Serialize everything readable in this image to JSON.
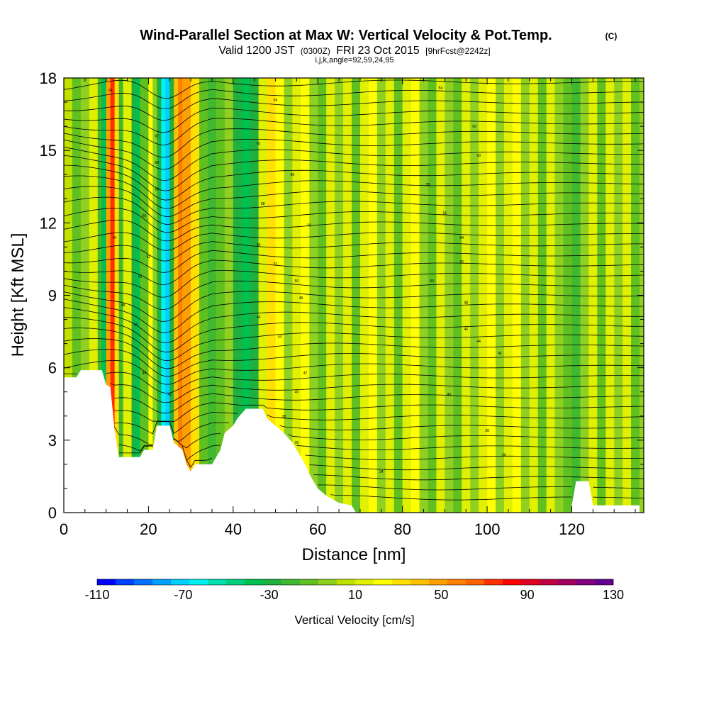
{
  "title": "Wind-Parallel Section at Max W: Vertical Velocity & Pot.Temp.",
  "title_mark": "(C)",
  "subtitle": {
    "valid": "Valid 1200 JST",
    "utc": "(0300Z)",
    "date": "FRI 23 Oct 2015",
    "fcst": "[9hrFcst@2242z]"
  },
  "subtitle2": "i,j,k,angle=92,59,24,95",
  "chart_data": {
    "type": "heatmap",
    "xlabel": "Distance [nm]",
    "ylabel": "Height [Kft MSL]",
    "xlim": [
      0,
      137
    ],
    "ylim": [
      0,
      18
    ],
    "x_ticks": [
      "0",
      "20",
      "40",
      "60",
      "80",
      "100",
      "120"
    ],
    "y_ticks": [
      "0",
      "3",
      "6",
      "9",
      "12",
      "15",
      "18"
    ],
    "colorbar": {
      "label": "Vertical Velocity [cm/s]",
      "range": [
        -110,
        130
      ],
      "tick_labels": [
        "-110",
        "-70",
        "-30",
        "10",
        "50",
        "90",
        "130"
      ],
      "colors": [
        "#0000ff",
        "#0040ff",
        "#0070ff",
        "#00a0ff",
        "#00d0ff",
        "#00f0f0",
        "#00e0b0",
        "#00d080",
        "#00c050",
        "#20b040",
        "#40b830",
        "#60c020",
        "#90d020",
        "#c0e000",
        "#e0f000",
        "#ffff00",
        "#ffe000",
        "#ffc000",
        "#ffa000",
        "#ff8000",
        "#ff6000",
        "#ff3000",
        "#ff0000",
        "#e00020",
        "#c00040",
        "#a00060",
        "#800080",
        "#600090"
      ]
    },
    "band_velocity": [
      {
        "x": 0,
        "w": 8
      },
      {
        "x": 2,
        "w": -10
      },
      {
        "x": 4,
        "w": 0
      },
      {
        "x": 6,
        "w": 10
      },
      {
        "x": 8,
        "w": -20
      },
      {
        "x": 9,
        "w": -40
      },
      {
        "x": 10,
        "w": 50
      },
      {
        "x": 11,
        "w": 70
      },
      {
        "x": 12,
        "w": 30
      },
      {
        "x": 13,
        "w": -20
      },
      {
        "x": 14,
        "w": 10
      },
      {
        "x": 16,
        "w": -30
      },
      {
        "x": 17,
        "w": -40
      },
      {
        "x": 18,
        "w": -10
      },
      {
        "x": 20,
        "w": 20
      },
      {
        "x": 21,
        "w": 0
      },
      {
        "x": 22,
        "w": -30
      },
      {
        "x": 23,
        "w": -60
      },
      {
        "x": 24,
        "w": -70
      },
      {
        "x": 25,
        "w": -30
      },
      {
        "x": 26,
        "w": 40
      },
      {
        "x": 27,
        "w": 60
      },
      {
        "x": 28,
        "w": 50
      },
      {
        "x": 30,
        "w": 30
      },
      {
        "x": 32,
        "w": -10
      },
      {
        "x": 34,
        "w": -20
      },
      {
        "x": 36,
        "w": -10
      },
      {
        "x": 38,
        "w": 0
      },
      {
        "x": 40,
        "w": -30
      },
      {
        "x": 42,
        "w": -40
      },
      {
        "x": 44,
        "w": -30
      },
      {
        "x": 46,
        "w": 10
      },
      {
        "x": 48,
        "w": 30
      },
      {
        "x": 50,
        "w": 20
      },
      {
        "x": 52,
        "w": 0
      },
      {
        "x": 54,
        "w": 10
      },
      {
        "x": 56,
        "w": 20
      },
      {
        "x": 58,
        "w": 0
      },
      {
        "x": 60,
        "w": -10
      },
      {
        "x": 62,
        "w": 10
      },
      {
        "x": 64,
        "w": 0
      },
      {
        "x": 66,
        "w": 10
      },
      {
        "x": 68,
        "w": -10
      },
      {
        "x": 70,
        "w": 10
      },
      {
        "x": 72,
        "w": 20
      },
      {
        "x": 74,
        "w": 0
      },
      {
        "x": 76,
        "w": 10
      },
      {
        "x": 78,
        "w": -10
      },
      {
        "x": 80,
        "w": 10
      },
      {
        "x": 82,
        "w": 20
      },
      {
        "x": 84,
        "w": 0
      },
      {
        "x": 86,
        "w": -10
      },
      {
        "x": 88,
        "w": 10
      },
      {
        "x": 90,
        "w": 0
      },
      {
        "x": 92,
        "w": -10
      },
      {
        "x": 94,
        "w": 10
      },
      {
        "x": 96,
        "w": 0
      },
      {
        "x": 98,
        "w": 10
      },
      {
        "x": 100,
        "w": 20
      },
      {
        "x": 102,
        "w": 0
      },
      {
        "x": 104,
        "w": 10
      },
      {
        "x": 106,
        "w": 20
      },
      {
        "x": 108,
        "w": 0
      },
      {
        "x": 110,
        "w": 10
      },
      {
        "x": 112,
        "w": -10
      },
      {
        "x": 114,
        "w": 10
      },
      {
        "x": 116,
        "w": 0
      },
      {
        "x": 118,
        "w": -10
      },
      {
        "x": 120,
        "w": -20
      },
      {
        "x": 122,
        "w": 0
      },
      {
        "x": 124,
        "w": 10
      },
      {
        "x": 126,
        "w": -10
      },
      {
        "x": 128,
        "w": 10
      },
      {
        "x": 130,
        "w": 0
      },
      {
        "x": 132,
        "w": 10
      },
      {
        "x": 134,
        "w": -10
      },
      {
        "x": 136,
        "w": 0
      }
    ],
    "terrain_kft": [
      [
        0,
        5.3
      ],
      [
        0,
        5.6
      ],
      [
        3,
        5.6
      ],
      [
        4,
        5.9
      ],
      [
        9,
        5.9
      ],
      [
        10,
        5.3
      ],
      [
        11,
        5.2
      ],
      [
        12,
        3.4
      ],
      [
        13,
        2.3
      ],
      [
        18,
        2.3
      ],
      [
        19,
        2.6
      ],
      [
        21,
        2.6
      ],
      [
        22,
        3.6
      ],
      [
        25,
        3.6
      ],
      [
        26,
        2.9
      ],
      [
        28,
        2.6
      ],
      [
        29,
        2.0
      ],
      [
        30,
        1.7
      ],
      [
        31,
        2.0
      ],
      [
        35,
        2.0
      ],
      [
        37,
        2.6
      ],
      [
        38,
        3.3
      ],
      [
        40,
        3.6
      ],
      [
        41,
        3.9
      ],
      [
        43,
        4.3
      ],
      [
        47,
        4.3
      ],
      [
        48,
        3.9
      ],
      [
        50,
        3.6
      ],
      [
        52,
        3.3
      ],
      [
        54,
        2.9
      ],
      [
        56,
        2.3
      ],
      [
        57,
        2.0
      ],
      [
        58,
        1.6
      ],
      [
        59,
        1.3
      ],
      [
        60,
        1.0
      ],
      [
        62,
        0.7
      ],
      [
        65,
        0.4
      ],
      [
        68,
        0.3
      ],
      [
        69,
        0
      ],
      [
        120,
        0
      ],
      [
        120,
        0.3
      ],
      [
        121,
        1.3
      ],
      [
        124,
        1.3
      ],
      [
        125,
        0.3
      ],
      [
        136,
        0.3
      ],
      [
        136,
        0
      ]
    ],
    "isentrope_labels": [
      {
        "x": 11,
        "y": 17.5,
        "t": "64"
      },
      {
        "x": 22,
        "y": 15.6,
        "t": "62"
      },
      {
        "x": 22,
        "y": 14.5,
        "t": "60"
      },
      {
        "x": 22,
        "y": 13.4,
        "t": "58"
      },
      {
        "x": 19,
        "y": 12.3,
        "t": "56"
      },
      {
        "x": 12,
        "y": 11.4,
        "t": "54"
      },
      {
        "x": 20,
        "y": 10.6,
        "t": "52"
      },
      {
        "x": 18,
        "y": 9.8,
        "t": "50"
      },
      {
        "x": 14,
        "y": 8.6,
        "t": "48"
      },
      {
        "x": 17,
        "y": 7.8,
        "t": "46"
      },
      {
        "x": 19,
        "y": 5.8,
        "t": "44"
      },
      {
        "x": 25,
        "y": 4.9,
        "t": "42"
      },
      {
        "x": 50,
        "y": 17.1,
        "t": "64"
      },
      {
        "x": 46,
        "y": 15.3,
        "t": "62"
      },
      {
        "x": 54,
        "y": 14.0,
        "t": "60"
      },
      {
        "x": 47,
        "y": 12.8,
        "t": "58"
      },
      {
        "x": 58,
        "y": 11.9,
        "t": "56"
      },
      {
        "x": 46,
        "y": 11.1,
        "t": "54"
      },
      {
        "x": 50,
        "y": 10.3,
        "t": "52"
      },
      {
        "x": 55,
        "y": 9.6,
        "t": "50"
      },
      {
        "x": 56,
        "y": 8.9,
        "t": "48"
      },
      {
        "x": 46,
        "y": 8.1,
        "t": "46"
      },
      {
        "x": 51,
        "y": 7.3,
        "t": "44"
      },
      {
        "x": 57,
        "y": 5.8,
        "t": "42"
      },
      {
        "x": 55,
        "y": 5.0,
        "t": "40"
      },
      {
        "x": 52,
        "y": 4.0,
        "t": "38"
      },
      {
        "x": 55,
        "y": 2.9,
        "t": "36"
      },
      {
        "x": 75,
        "y": 1.7,
        "t": "34"
      },
      {
        "x": 89,
        "y": 17.6,
        "t": "64"
      },
      {
        "x": 97,
        "y": 16.0,
        "t": "62"
      },
      {
        "x": 98,
        "y": 14.8,
        "t": "60"
      },
      {
        "x": 86,
        "y": 13.6,
        "t": "58"
      },
      {
        "x": 90,
        "y": 12.4,
        "t": "56"
      },
      {
        "x": 94,
        "y": 11.4,
        "t": "54"
      },
      {
        "x": 94,
        "y": 10.4,
        "t": "52"
      },
      {
        "x": 87,
        "y": 9.6,
        "t": "50"
      },
      {
        "x": 95,
        "y": 8.7,
        "t": "48"
      },
      {
        "x": 95,
        "y": 7.6,
        "t": "46"
      },
      {
        "x": 98,
        "y": 7.1,
        "t": "44"
      },
      {
        "x": 103,
        "y": 6.6,
        "t": "42"
      },
      {
        "x": 91,
        "y": 4.9,
        "t": "40"
      },
      {
        "x": 100,
        "y": 3.4,
        "t": "38"
      },
      {
        "x": 104,
        "y": 2.4,
        "t": "36"
      }
    ]
  }
}
